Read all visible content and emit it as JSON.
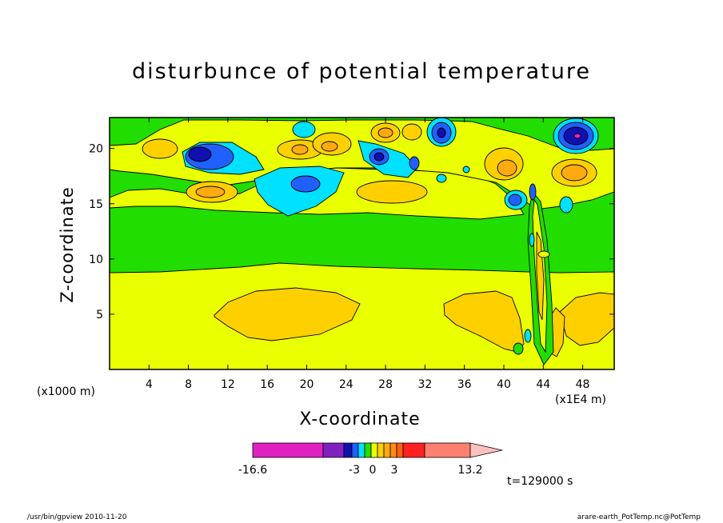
{
  "chart_data": {
    "type": "contour",
    "title": "disturbunce of potential temperature",
    "xlabel": "X-coordinate",
    "ylabel": "Z-coordinate",
    "x_unit": "(x1000 m)",
    "x_scale_note": "(x1E4 m)",
    "time_label": "t=129000 s",
    "xlim": [
      0,
      51.2
    ],
    "ylim": [
      0,
      22.8
    ],
    "x_ticks": [
      4,
      8,
      12,
      16,
      20,
      24,
      28,
      32,
      36,
      40,
      44,
      48
    ],
    "y_ticks": [
      5,
      10,
      15,
      20
    ],
    "colorbar": {
      "min_label": "-16.6",
      "max_label": "13.2",
      "tick_labels": [
        "-3",
        "0",
        "3"
      ],
      "extend_right": true
    }
  },
  "colors": {
    "magenta": "#e020c0",
    "purple": "#8020c0",
    "navy": "#1010b0",
    "blue": "#2060ff",
    "cyan": "#00e0ff",
    "green": "#22dd00",
    "yellow": "#eaff00",
    "gold": "#ffd000",
    "orange": "#ffaa10",
    "red": "#ff2020",
    "salmon": "#ff8070",
    "pink": "#ffc0c0"
  },
  "footer": {
    "left": "/usr/bin/gpview   2010-11-20",
    "right": "arare-earth_PotTemp.nc@PotTemp"
  }
}
